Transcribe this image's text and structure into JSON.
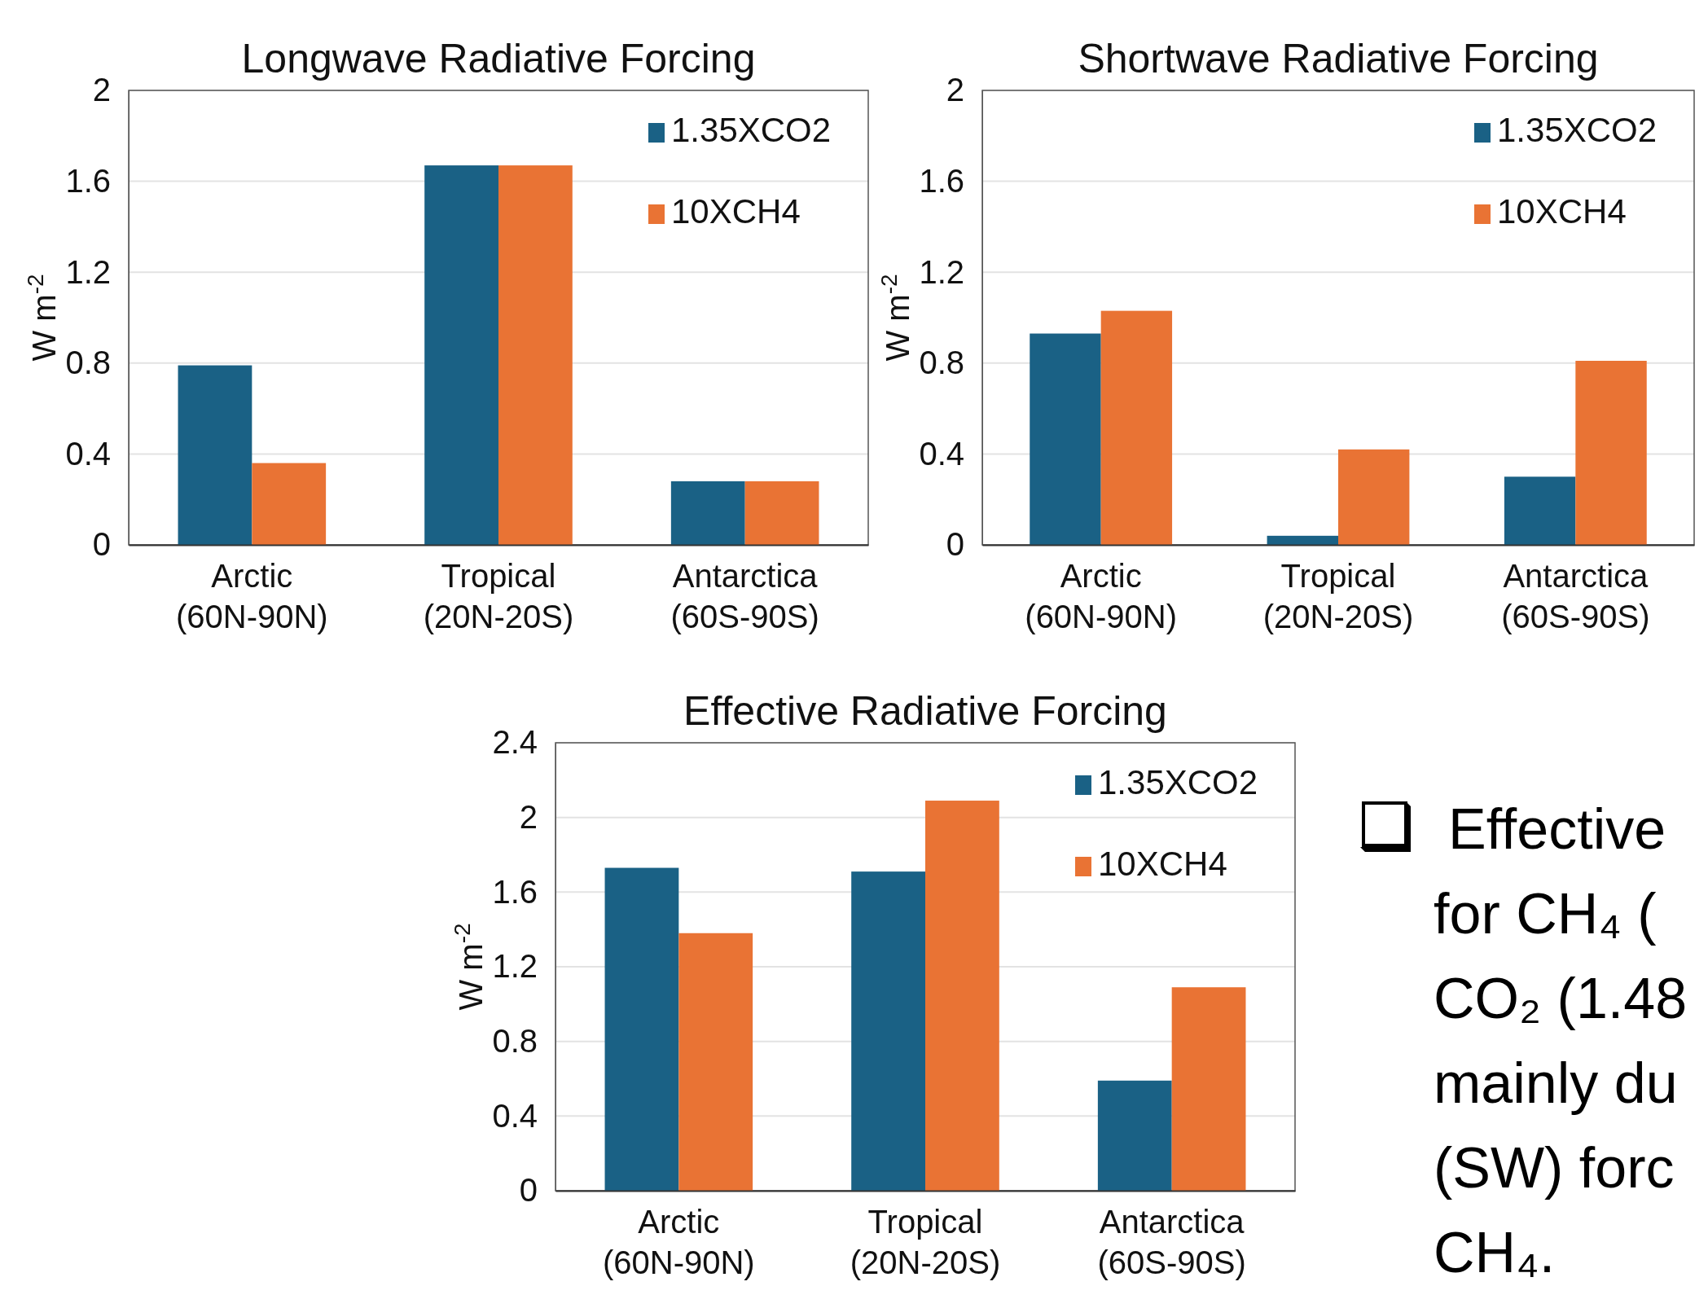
{
  "chart_data": [
    {
      "type": "bar",
      "title": "Longwave Radiative Forcing",
      "ylabel": "W m$^{-2}$",
      "categories": [
        "Arctic\n(60N-90N)",
        "Tropical\n(20N-20S)",
        "Antarctica\n(60S-90S)"
      ],
      "series": [
        {
          "name": "1.35XCO2",
          "color": "#1a6185",
          "values": [
            0.79,
            1.67,
            0.28
          ]
        },
        {
          "name": "10XCH4",
          "color": "#e97334",
          "values": [
            0.36,
            1.67,
            0.28
          ]
        }
      ],
      "ylim": [
        0,
        2
      ],
      "yticks": [
        0,
        0.4,
        0.8,
        1.2,
        1.6,
        2
      ],
      "grid": "y",
      "legend": "top right"
    },
    {
      "type": "bar",
      "title": "Shortwave Radiative Forcing",
      "ylabel": "W m$^{-2}$",
      "categories": [
        "Arctic\n(60N-90N)",
        "Tropical\n(20N-20S)",
        "Antarctica\n(60S-90S)"
      ],
      "series": [
        {
          "name": "1.35XCO2",
          "color": "#1a6185",
          "values": [
            0.93,
            0.04,
            0.3
          ]
        },
        {
          "name": "10XCH4",
          "color": "#e97334",
          "values": [
            1.03,
            0.42,
            0.81
          ]
        }
      ],
      "ylim": [
        0,
        2
      ],
      "yticks": [
        0,
        0.4,
        0.8,
        1.2,
        1.6,
        2
      ],
      "grid": "y",
      "legend": "top right"
    },
    {
      "type": "bar",
      "title": "Effective Radiative Forcing",
      "ylabel": "W m$^{-2}$",
      "categories": [
        "Arctic\n(60N-90N)",
        "Tropical\n(20N-20S)",
        "Antarctica\n(60S-90S)"
      ],
      "series": [
        {
          "name": "1.35XCO2",
          "color": "#1a6185",
          "values": [
            1.73,
            1.71,
            0.59
          ]
        },
        {
          "name": "10XCH4",
          "color": "#e97334",
          "values": [
            1.38,
            2.09,
            1.09
          ]
        }
      ],
      "ylim": [
        0,
        2.4
      ],
      "yticks": [
        0,
        0.4,
        0.8,
        1.2,
        1.6,
        2,
        2.4
      ],
      "grid": "y",
      "legend": "top right"
    },
    {
      "type": "other",
      "annotations": [
        "Effective",
        "for CH₄ (",
        "CO₂ (1.48",
        "mainly du",
        "(SW) forc",
        "CH₄."
      ]
    }
  ]
}
